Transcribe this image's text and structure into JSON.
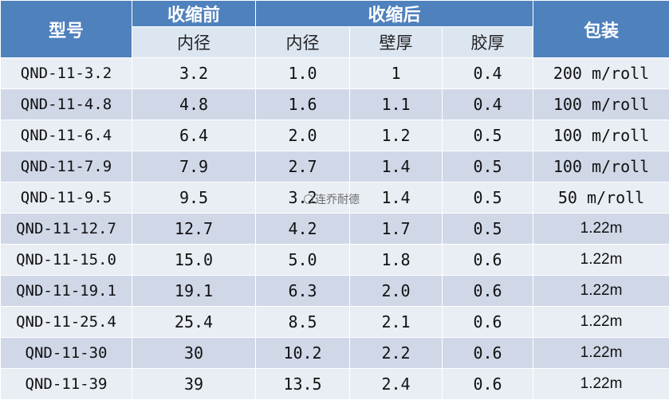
{
  "header": {
    "model": "型号",
    "before": "收缩前",
    "after": "收缩后",
    "package": "包装",
    "sub": {
      "before_id": "内径",
      "after_id": "内径",
      "wall": "壁厚",
      "glue": "胶厚"
    }
  },
  "rows": [
    {
      "model": "QND-11-3.2",
      "before_id": "3.2",
      "after_id": "1.0",
      "wall": "1",
      "glue": "0.4",
      "pack": "200 m/roll"
    },
    {
      "model": "QND-11-4.8",
      "before_id": "4.8",
      "after_id": "1.6",
      "wall": "1.1",
      "glue": "0.4",
      "pack": "100 m/roll"
    },
    {
      "model": "QND-11-6.4",
      "before_id": "6.4",
      "after_id": "2.0",
      "wall": "1.2",
      "glue": "0.5",
      "pack": "100 m/roll"
    },
    {
      "model": "QND-11-7.9",
      "before_id": "7.9",
      "after_id": "2.7",
      "wall": "1.4",
      "glue": "0.5",
      "pack": "100 m/roll"
    },
    {
      "model": "QND-11-9.5",
      "before_id": "9.5",
      "after_id": "3.2",
      "wall": "1.4",
      "glue": "0.5",
      "pack": "50 m/roll"
    },
    {
      "model": "QND-11-12.7",
      "before_id": "12.7",
      "after_id": "4.2",
      "wall": "1.7",
      "glue": "0.5",
      "pack": "1.22m"
    },
    {
      "model": "QND-11-15.0",
      "before_id": "15.0",
      "after_id": "5.0",
      "wall": "1.8",
      "glue": "0.6",
      "pack": "1.22m"
    },
    {
      "model": "QND-11-19.1",
      "before_id": "19.1",
      "after_id": "6.3",
      "wall": "2.0",
      "glue": "0.6",
      "pack": "1.22m"
    },
    {
      "model": "QND-11-25.4",
      "before_id": "25.4",
      "after_id": "8.5",
      "wall": "2.1",
      "glue": "0.6",
      "pack": "1.22m"
    },
    {
      "model": "QND-11-30",
      "before_id": "30",
      "after_id": "10.2",
      "wall": "2.2",
      "glue": "0.6",
      "pack": "1.22m"
    },
    {
      "model": "QND-11-39",
      "before_id": "39",
      "after_id": "13.5",
      "wall": "2.4",
      "glue": "0.6",
      "pack": "1.22m"
    }
  ],
  "watermark": "连乔耐德",
  "colors": {
    "header_dark": "#4f81bd",
    "header_light": "#dce6f1",
    "row_light": "#e9edf4",
    "row_dark": "#d0d8e8"
  }
}
